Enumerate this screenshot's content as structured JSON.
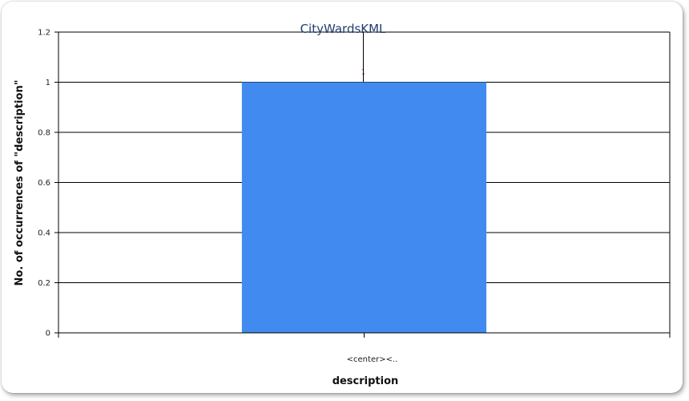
{
  "chart_data": {
    "type": "bar",
    "title": "CityWardsKML",
    "xlabel": "description",
    "ylabel": "No. of occurrences of \"description\"",
    "categories": [
      "<center><.."
    ],
    "values": [
      1
    ],
    "data_labels": [
      "1"
    ],
    "ylim": [
      0,
      1.2
    ],
    "yticks": [
      0,
      0.2,
      0.4,
      0.6,
      0.8,
      1,
      1.2
    ],
    "ytick_labels": [
      "0",
      "0.2",
      "0.4",
      "0.6",
      "0.8",
      "1",
      "1.2"
    ],
    "grid": true,
    "legend": "none",
    "colors": {
      "bar": "#418bf0"
    }
  }
}
